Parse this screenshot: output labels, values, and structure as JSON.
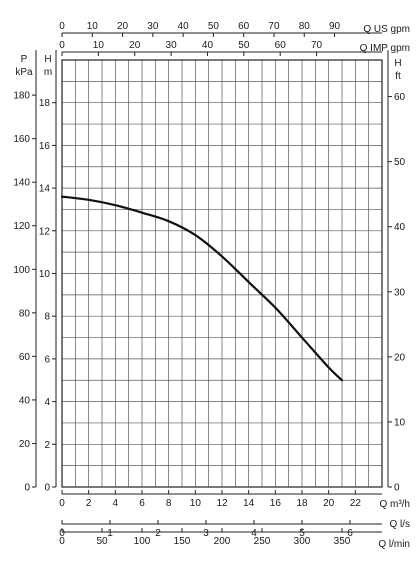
{
  "chart_data": {
    "type": "line",
    "title": "",
    "grid": true,
    "axes": {
      "x_primary": {
        "label": "Q m³/h",
        "range": [
          0,
          24
        ],
        "ticks": [
          0,
          2,
          4,
          6,
          8,
          10,
          12,
          14,
          16,
          18,
          20,
          22
        ]
      },
      "x_ls": {
        "label": "Q l/s",
        "range": [
          0,
          6.667
        ],
        "ticks": [
          0,
          1,
          2,
          3,
          4,
          5,
          6
        ]
      },
      "x_lmin": {
        "label": "Q l/min",
        "range": [
          0,
          400
        ],
        "ticks": [
          0,
          50,
          100,
          150,
          200,
          250,
          300,
          350
        ]
      },
      "x_usgpm": {
        "label": "Q US gpm",
        "range": [
          0,
          105.67
        ],
        "ticks": [
          0,
          10,
          20,
          30,
          40,
          50,
          60,
          70,
          80,
          90
        ]
      },
      "x_impgpm": {
        "label": "Q IMP gpm",
        "range": [
          0,
          87.99
        ],
        "ticks": [
          0,
          10,
          20,
          30,
          40,
          50,
          60,
          70
        ]
      },
      "y_head_m": {
        "label_top": "H",
        "label_bottom": "m",
        "range": [
          0,
          20
        ],
        "ticks": [
          0,
          2,
          4,
          6,
          8,
          10,
          12,
          14,
          16,
          18
        ]
      },
      "y_pressure_kpa": {
        "label_top": "P",
        "label_bottom": "kPa",
        "range": [
          0,
          196.13
        ],
        "ticks": [
          0,
          20,
          40,
          60,
          80,
          100,
          120,
          140,
          160,
          180
        ]
      },
      "y_head_ft": {
        "label_top": "H",
        "label_bottom": "ft",
        "range": [
          0,
          65.62
        ],
        "ticks": [
          0,
          10,
          20,
          30,
          40,
          50,
          60
        ]
      }
    },
    "series": [
      {
        "x": [
          0,
          2,
          4,
          6,
          8,
          10,
          12,
          14,
          16,
          18,
          20,
          21
        ],
        "y": [
          13.6,
          13.45,
          13.2,
          12.85,
          12.45,
          11.8,
          10.8,
          9.6,
          8.4,
          7.0,
          5.6,
          5.0
        ]
      }
    ]
  }
}
